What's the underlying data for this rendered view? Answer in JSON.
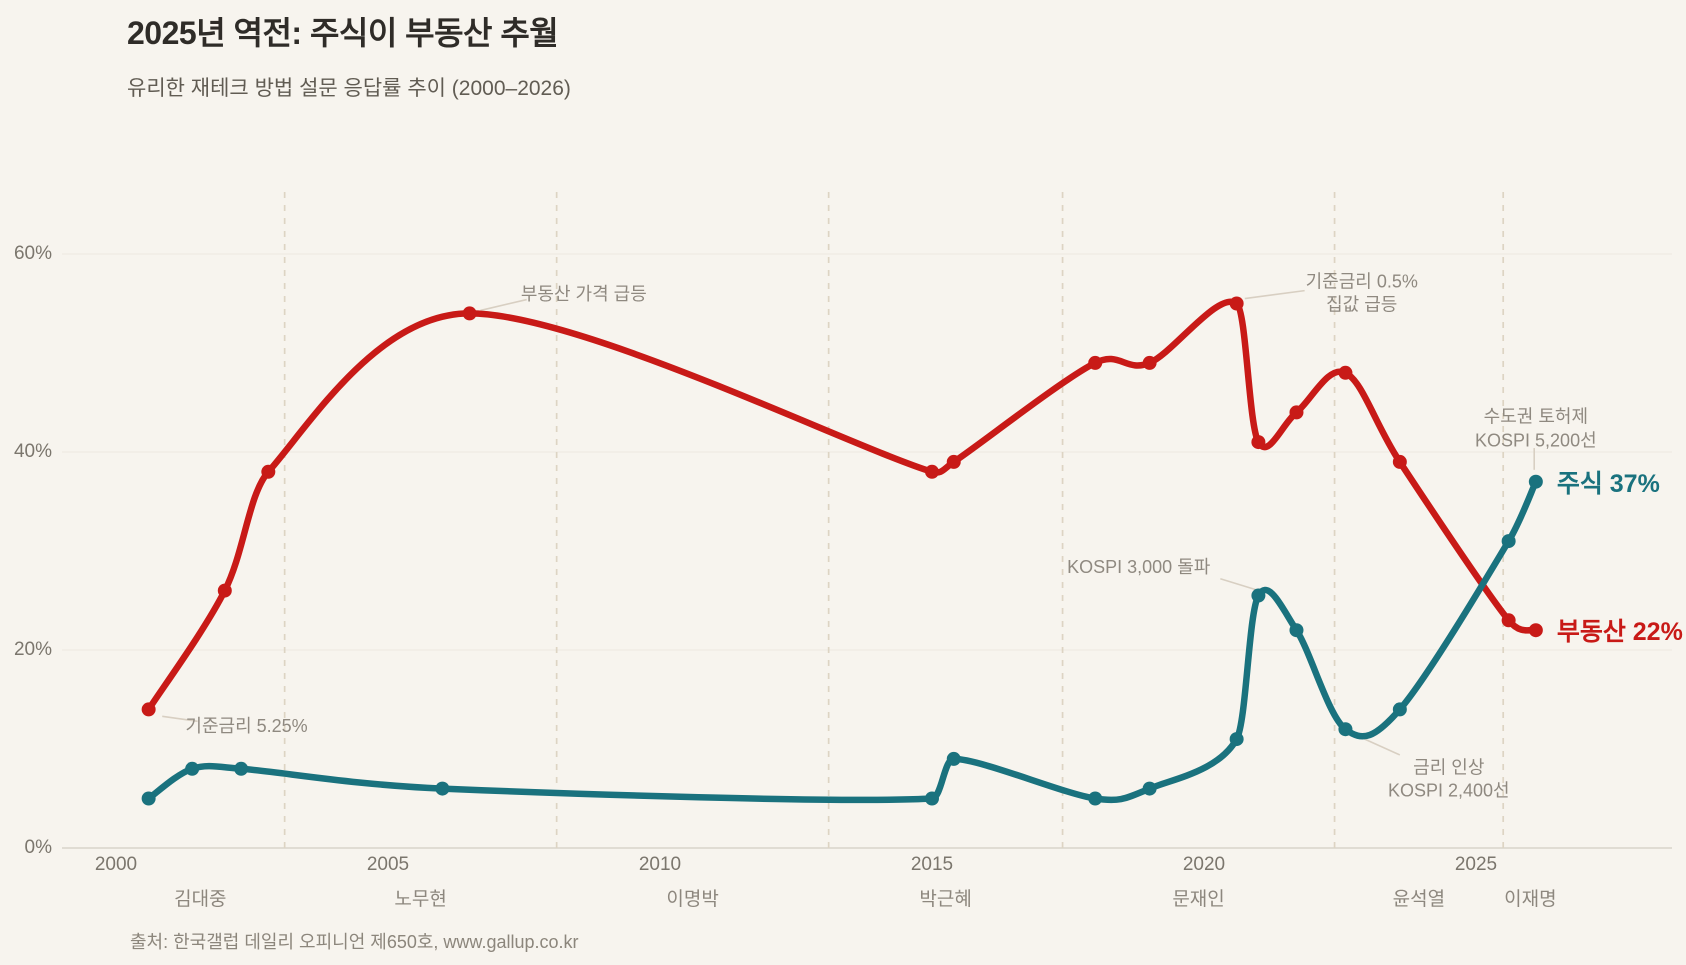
{
  "header": {
    "title": "2025년 역전: 주식이 부동산 추월",
    "subtitle": "유리한 재테크 방법 설문 응답률 추이 (2000–2026)"
  },
  "source_note": "출처: 한국갤럽 데일리 오피니언 제650호, www.gallup.co.kr",
  "colors": {
    "background": "#f7f4ee",
    "title": "#2f2c28",
    "subtitle": "#615c53",
    "tick": "#7b766d",
    "president": "#8d877e",
    "annotation": "#8f8980",
    "grid": "#ece8e0",
    "axis_zero": "#d9d4ca",
    "dashed": "#ddd4c3",
    "leader": "#d8cfc2",
    "real_estate": "#c81a17",
    "stocks": "#1a727e"
  },
  "chart_data": {
    "type": "line",
    "title": "유리한 재테크 방법 설문 응답률 추이",
    "x_axis": {
      "unit": "year",
      "range": [
        2000,
        2026.5
      ],
      "ticks": [
        2000,
        2005,
        2010,
        2015,
        2020,
        2025
      ]
    },
    "y_axis": {
      "unit": "percent",
      "range": [
        0,
        66
      ],
      "ticks": [
        {
          "value": 0,
          "label": "0%"
        },
        {
          "value": 20,
          "label": "20%"
        },
        {
          "value": 40,
          "label": "40%"
        },
        {
          "value": 60,
          "label": "60%"
        }
      ]
    },
    "grid": "horizontal",
    "series": [
      {
        "key": "real_estate",
        "name": "부동산",
        "end_label": "부동산 22%",
        "final_value": 22,
        "points": [
          [
            2000.6,
            14
          ],
          [
            2002,
            26
          ],
          [
            2002.8,
            38
          ],
          [
            2006.5,
            54
          ],
          [
            2015,
            38
          ],
          [
            2015.4,
            39
          ],
          [
            2018,
            49
          ],
          [
            2019,
            49
          ],
          [
            2020.6,
            55
          ],
          [
            2021,
            41
          ],
          [
            2021.7,
            44
          ],
          [
            2022.6,
            48
          ],
          [
            2023.6,
            39
          ],
          [
            2025.6,
            23
          ],
          [
            2026.1,
            22
          ]
        ]
      },
      {
        "key": "stocks",
        "name": "주식",
        "end_label": "주식 37%",
        "final_value": 37,
        "points": [
          [
            2000.6,
            5
          ],
          [
            2001.4,
            8
          ],
          [
            2002.3,
            8
          ],
          [
            2006,
            6
          ],
          [
            2015,
            5
          ],
          [
            2015.4,
            9
          ],
          [
            2018,
            5
          ],
          [
            2019,
            6
          ],
          [
            2020.6,
            11
          ],
          [
            2021,
            25.5
          ],
          [
            2021.7,
            22
          ],
          [
            2022.6,
            12
          ],
          [
            2023.6,
            14
          ],
          [
            2025.6,
            31
          ],
          [
            2026.1,
            37
          ]
        ]
      }
    ],
    "presidents": [
      {
        "name": "김대중",
        "start": 2000,
        "end": 2003.1
      },
      {
        "name": "노무현",
        "start": 2003.1,
        "end": 2008.1
      },
      {
        "name": "이명박",
        "start": 2008.1,
        "end": 2013.1
      },
      {
        "name": "박근혜",
        "start": 2013.1,
        "end": 2017.4
      },
      {
        "name": "문재인",
        "start": 2017.4,
        "end": 2022.4
      },
      {
        "name": "윤석열",
        "start": 2022.4,
        "end": 2025.5
      },
      {
        "name": "이재명",
        "start": 2025.5,
        "end": 2026.5
      }
    ],
    "annotations": [
      {
        "id": "base-rate-5-25",
        "lines": [
          "기준금리 5.25%"
        ],
        "x": 2002.4,
        "y": 12.2,
        "leader": [
          [
            2000.85,
            13.3
          ],
          [
            2001.5,
            12.8
          ]
        ]
      },
      {
        "id": "re-price-surge",
        "lines": [
          "부동산 가격 급등"
        ],
        "x": 2008.6,
        "y": 55.9,
        "leader": [
          [
            2006.7,
            54.3
          ],
          [
            2007.55,
            55.4
          ]
        ]
      },
      {
        "id": "kospi-3000",
        "lines": [
          "KOSPI 3,000 돌파"
        ],
        "x": 2018.8,
        "y": 28.3,
        "leader": [
          [
            2020.3,
            27.2
          ],
          [
            2020.95,
            26.1
          ]
        ]
      },
      {
        "id": "base-rate-0-5",
        "lines": [
          "기준금리 0.5%",
          "집값 급등"
        ],
        "x": 2022.9,
        "y": 56.0,
        "leader": [
          [
            2020.75,
            55.5
          ],
          [
            2021.85,
            56.3
          ]
        ]
      },
      {
        "id": "toheoje",
        "lines": [
          "수도권 토허제",
          "KOSPI 5,200선"
        ],
        "x": 2026.1,
        "y": 42.3,
        "leader": [
          [
            2026.07,
            40.4
          ],
          [
            2026.07,
            38.2
          ]
        ]
      },
      {
        "id": "rate-hike",
        "lines": [
          "금리 인상",
          "KOSPI 2,400선"
        ],
        "x": 2024.5,
        "y": 6.9,
        "leader": [
          [
            2022.75,
            11.5
          ],
          [
            2023.6,
            9.4
          ]
        ]
      }
    ]
  }
}
